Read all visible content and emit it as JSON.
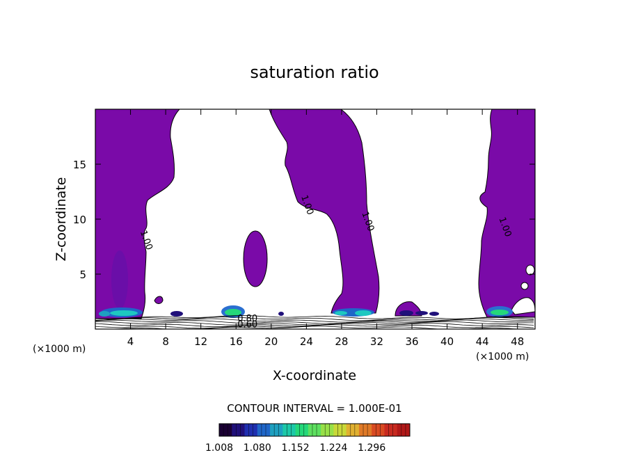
{
  "chart_data": {
    "type": "contour",
    "title": "saturation ratio",
    "xlabel": "X-coordinate",
    "ylabel": "Z-coordinate",
    "x_unit_left": "(×1000 m)",
    "x_unit_right": "(×1000 m)",
    "xlim": [
      0,
      50
    ],
    "ylim": [
      0,
      20
    ],
    "x_ticks": [
      4,
      8,
      12,
      16,
      20,
      24,
      28,
      32,
      36,
      40,
      44,
      48
    ],
    "y_ticks": [
      5,
      10,
      15
    ],
    "contour_interval_label": "CONTOUR INTERVAL = 1.000E-01",
    "contour_labels": [
      {
        "text": "1.00",
        "x": 5.5,
        "z": 8.0
      },
      {
        "text": "1.00",
        "x": 23.8,
        "z": 11.2
      },
      {
        "text": "1.00",
        "x": 30.7,
        "z": 9.7
      },
      {
        "text": "1.00",
        "x": 46.3,
        "z": 9.2
      },
      {
        "text": "0.80",
        "x": 17.3,
        "z": 0.7
      },
      {
        "text": "0.60",
        "x": 17.3,
        "z": 0.15
      }
    ],
    "colorbar": {
      "min": 1.008,
      "max": 1.368,
      "tick_labels": [
        "1.008",
        "1.080",
        "1.152",
        "1.224",
        "1.296"
      ],
      "colors": [
        "#1a0033",
        "#20107a",
        "#1f2fb0",
        "#1f66c8",
        "#1ea0c0",
        "#1cc8a8",
        "#24d87a",
        "#5ee060",
        "#98e048",
        "#c8d838",
        "#e0b030",
        "#e07a28",
        "#d84a22",
        "#c82a20",
        "#b01818"
      ]
    },
    "fill_color": "#7a0aa8",
    "grid": false,
    "legend": "none"
  }
}
